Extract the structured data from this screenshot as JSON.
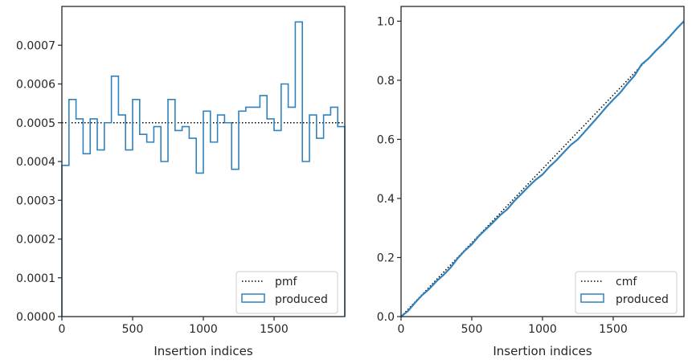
{
  "chart_data": [
    {
      "type": "histogram",
      "xlabel": "Insertion indices",
      "ylabel": "",
      "xlim": [
        0,
        2000
      ],
      "ylim": [
        0,
        0.0008
      ],
      "xticks": [
        0,
        500,
        1000,
        1500
      ],
      "xtick_labels": [
        "0",
        "500",
        "1000",
        "1500"
      ],
      "yticks": [
        0,
        0.0001,
        0.0002,
        0.0003,
        0.0004,
        0.0005,
        0.0006,
        0.0007
      ],
      "ytick_labels": [
        "0.0000",
        "0.0001",
        "0.0002",
        "0.0003",
        "0.0004",
        "0.0005",
        "0.0006",
        "0.0007"
      ],
      "grid": false,
      "legend_position": "lower-right",
      "series": [
        {
          "name": "pmf",
          "style": "dotted",
          "color": "#000000",
          "x": [
            0,
            2000
          ],
          "y": [
            0.0005,
            0.0005
          ]
        },
        {
          "name": "produced",
          "style": "step",
          "color": "#3182bd",
          "bin_edges": [
            0,
            50,
            100,
            150,
            200,
            250,
            300,
            350,
            400,
            450,
            500,
            550,
            600,
            650,
            700,
            750,
            800,
            850,
            900,
            950,
            1000,
            1050,
            1100,
            1150,
            1200,
            1250,
            1300,
            1350,
            1400,
            1450,
            1500,
            1550,
            1600,
            1650,
            1700,
            1750,
            1800,
            1850,
            1900,
            1950,
            2000
          ],
          "values": [
            0.00039,
            0.00056,
            0.00051,
            0.00042,
            0.00051,
            0.00043,
            0.0005,
            0.00062,
            0.00052,
            0.00043,
            0.00056,
            0.00047,
            0.00045,
            0.00049,
            0.0004,
            0.00056,
            0.00048,
            0.00049,
            0.00046,
            0.00037,
            0.00053,
            0.00045,
            0.00052,
            0.0005,
            0.00038,
            0.00053,
            0.00054,
            0.00054,
            0.00057,
            0.00051,
            0.00048,
            0.0006,
            0.00054,
            0.00076,
            0.0004,
            0.00052,
            0.00046,
            0.00052,
            0.00054,
            0.00049
          ]
        }
      ]
    },
    {
      "type": "line",
      "xlabel": "Insertion indices",
      "ylabel": "",
      "xlim": [
        0,
        2000
      ],
      "ylim": [
        0,
        1.05
      ],
      "xticks": [
        0,
        500,
        1000,
        1500
      ],
      "xtick_labels": [
        "0",
        "500",
        "1000",
        "1500"
      ],
      "yticks": [
        0,
        0.2,
        0.4,
        0.6,
        0.8,
        1.0
      ],
      "ytick_labels": [
        "0.0",
        "0.2",
        "0.4",
        "0.6",
        "0.8",
        "1.0"
      ],
      "grid": false,
      "legend_position": "lower-right",
      "series": [
        {
          "name": "cmf",
          "style": "dotted",
          "color": "#000000",
          "x": [
            0,
            2000
          ],
          "y": [
            0,
            1
          ]
        },
        {
          "name": "produced",
          "style": "line",
          "color": "#3182bd",
          "x": [
            0,
            50,
            100,
            150,
            200,
            250,
            300,
            350,
            400,
            450,
            500,
            550,
            600,
            650,
            700,
            750,
            800,
            850,
            900,
            950,
            1000,
            1050,
            1100,
            1150,
            1200,
            1250,
            1300,
            1350,
            1400,
            1450,
            1500,
            1550,
            1600,
            1650,
            1700,
            1750,
            1800,
            1850,
            1900,
            1950,
            2000
          ],
          "y": [
            0,
            0.0195,
            0.0475,
            0.073,
            0.094,
            0.1195,
            0.141,
            0.166,
            0.197,
            0.223,
            0.2445,
            0.2725,
            0.296,
            0.3185,
            0.343,
            0.363,
            0.391,
            0.415,
            0.4395,
            0.4625,
            0.481,
            0.5075,
            0.53,
            0.556,
            0.581,
            0.6,
            0.6265,
            0.6535,
            0.6805,
            0.709,
            0.7345,
            0.7585,
            0.7885,
            0.8155,
            0.8535,
            0.8735,
            0.8995,
            0.9225,
            0.9485,
            0.9755,
            1.0
          ]
        }
      ]
    }
  ]
}
